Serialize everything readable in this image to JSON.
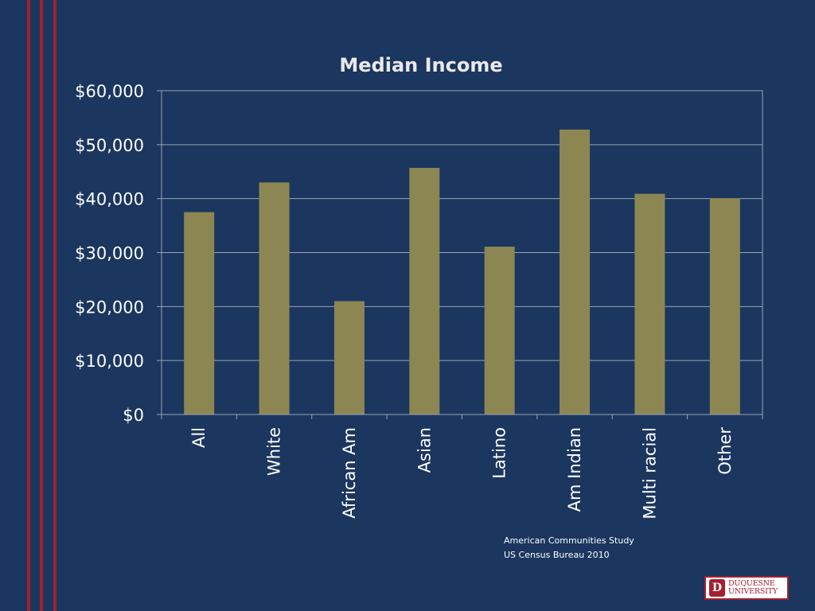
{
  "chart_data": {
    "type": "bar",
    "title": "Median Income",
    "categories": [
      "All",
      "White",
      "African Am",
      "Asian",
      "Latino",
      "Am Indian",
      "Multi racial",
      "Other"
    ],
    "values": [
      37500,
      43000,
      21000,
      45700,
      31100,
      52800,
      40900,
      40100
    ],
    "ylim": [
      0,
      60000
    ],
    "yticks": [
      0,
      10000,
      20000,
      30000,
      40000,
      50000,
      60000
    ],
    "ytick_labels": [
      "$0",
      "$10,000",
      "$20,000",
      "$30,000",
      "$40,000",
      "$50,000",
      "$60,000"
    ],
    "xlabel": "",
    "ylabel": "",
    "grid": true,
    "bar_color": "#8c8653"
  },
  "source": {
    "line1": "American Communities Study",
    "line2": "US Census Bureau 2010"
  },
  "logo": {
    "line1": "DUQUESNE",
    "line2": "UNIVERSITY",
    "mark": "D"
  },
  "colors": {
    "background": "#1b365f",
    "stripe": "#a3202f",
    "gridline": "#9aa4b6"
  }
}
